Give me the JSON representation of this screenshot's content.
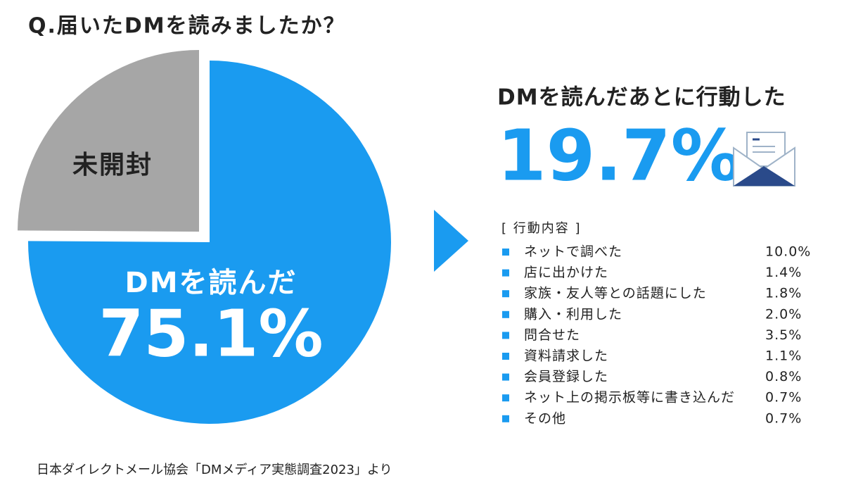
{
  "chart_data": {
    "type": "pie",
    "title": "Q.届いたDMを読みましたか？",
    "categories": [
      "DMを読んだ",
      "未開封"
    ],
    "values": [
      75.1,
      24.9
    ],
    "value_labels": [
      "75.1%",
      null
    ],
    "colors": [
      "#1a9bf0",
      "#a6a6a6"
    ]
  },
  "highlight": {
    "title": "DMを読んだあとに行動した",
    "value": "19.7%"
  },
  "breakdown": {
    "title": "[ 行動内容 ]",
    "rows": [
      [
        "ネットで調べた",
        "10.0%"
      ],
      [
        "店に出かけた",
        "1.4%"
      ],
      [
        "家族・友人等との話題にした",
        "1.8%"
      ],
      [
        "購入・利用した",
        "2.0%"
      ],
      [
        "問合せた",
        "3.5%"
      ],
      [
        "資料請求した",
        "1.1%"
      ],
      [
        "会員登録した",
        "0.8%"
      ],
      [
        "ネット上の掲示板等に書き込んだ",
        "0.7%"
      ],
      [
        "その他",
        "0.7%"
      ]
    ]
  },
  "source": "日本ダイレクトメール協会「DMメディア実態調査2023」より"
}
